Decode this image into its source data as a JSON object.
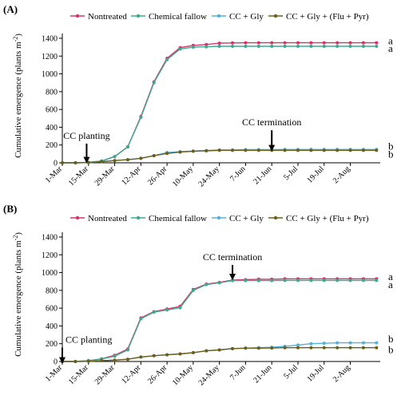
{
  "chart_data": [
    {
      "panel_label": "(A)",
      "type": "line",
      "title": "",
      "xlabel": "",
      "ylabel": "Cumulative emergence (plants m",
      "ylabel_superscript": "-2",
      "ylabel_close": ")",
      "x_ticks": [
        "1-Mar",
        "15-Mar",
        "29-Mar",
        "12-Apr",
        "26-Apr",
        "10-May",
        "24-May",
        "7-Jun",
        "21-Jun",
        "5-Jul",
        "19-Jul",
        "2-Aug"
      ],
      "y_ticks": [
        "0",
        "200",
        "400",
        "600",
        "800",
        "1000",
        "1200",
        "1400"
      ],
      "xlim": [
        0,
        170
      ],
      "ylim": [
        0,
        1400
      ],
      "grid": false,
      "legend_position": "top",
      "x": [
        0,
        7,
        14,
        21,
        28,
        35,
        42,
        49,
        56,
        63,
        70,
        77,
        84,
        91,
        98,
        105,
        112,
        119,
        126,
        133,
        140,
        147,
        154,
        161,
        168
      ],
      "series": [
        {
          "name": "Nontreated",
          "color": "#d6336c",
          "values": [
            0,
            0,
            5,
            20,
            70,
            180,
            520,
            910,
            1175,
            1295,
            1320,
            1330,
            1345,
            1348,
            1350,
            1350,
            1350,
            1350,
            1350,
            1350,
            1350,
            1350,
            1350,
            1350,
            1350
          ]
        },
        {
          "name": "Chemical fallow",
          "color": "#3fa890",
          "values": [
            0,
            0,
            5,
            20,
            70,
            180,
            510,
            900,
            1160,
            1280,
            1300,
            1305,
            1310,
            1310,
            1310,
            1310,
            1310,
            1310,
            1310,
            1310,
            1310,
            1310,
            1310,
            1310,
            1310
          ]
        },
        {
          "name": "CC + Gly",
          "color": "#52b1d8",
          "values": [
            0,
            0,
            3,
            12,
            25,
            35,
            50,
            80,
            115,
            125,
            132,
            138,
            145,
            145,
            148,
            148,
            148,
            150,
            150,
            150,
            150,
            150,
            150,
            150,
            150
          ]
        },
        {
          "name": "CC + Gly + (Flu + Pyr)",
          "color": "#6b5e1c",
          "values": [
            0,
            0,
            3,
            12,
            25,
            35,
            50,
            80,
            105,
            120,
            130,
            135,
            140,
            140,
            140,
            140,
            140,
            140,
            140,
            140,
            140,
            140,
            140,
            140,
            140
          ]
        }
      ],
      "annotations": [
        {
          "text": "CC planting",
          "x": 13,
          "y": 270,
          "arrow_to_y": 30
        },
        {
          "text": "CC termination",
          "x": 112,
          "y": 420,
          "arrow_to_y": 165
        }
      ],
      "significance_letters": [
        {
          "text": "a",
          "y": 1370
        },
        {
          "text": "a",
          "y": 1285
        },
        {
          "text": "b",
          "y": 185
        },
        {
          "text": "b",
          "y": 95
        }
      ]
    },
    {
      "panel_label": "(B)",
      "type": "line",
      "title": "",
      "xlabel": "",
      "ylabel": "Cumulative emergence (plants m",
      "ylabel_superscript": "-2",
      "ylabel_close": ")",
      "x_ticks": [
        "1-Mar",
        "15-Mar",
        "29-Mar",
        "12-Apr",
        "26-Apr",
        "10-May",
        "24-May",
        "7-Jun",
        "21-Jun",
        "5-Jul",
        "19-Jul",
        "2-Aug"
      ],
      "y_ticks": [
        "0",
        "200",
        "400",
        "600",
        "800",
        "1000",
        "1200",
        "1400"
      ],
      "xlim": [
        0,
        170
      ],
      "ylim": [
        0,
        1400
      ],
      "grid": false,
      "legend_position": "top",
      "x": [
        0,
        7,
        14,
        21,
        28,
        35,
        42,
        49,
        56,
        63,
        70,
        77,
        84,
        91,
        98,
        105,
        112,
        119,
        126,
        133,
        140,
        147,
        154,
        161,
        168
      ],
      "series": [
        {
          "name": "Nontreated",
          "color": "#d6336c",
          "values": [
            0,
            0,
            10,
            30,
            70,
            140,
            490,
            560,
            590,
            620,
            810,
            870,
            890,
            915,
            920,
            925,
            925,
            930,
            930,
            930,
            930,
            930,
            930,
            930,
            930
          ]
        },
        {
          "name": "Chemical fallow",
          "color": "#3fa890",
          "values": [
            0,
            0,
            10,
            28,
            60,
            130,
            480,
            555,
            580,
            605,
            800,
            865,
            885,
            910,
            910,
            910,
            910,
            912,
            912,
            912,
            912,
            912,
            912,
            912,
            912
          ]
        },
        {
          "name": "CC + Gly",
          "color": "#52b1d8",
          "values": [
            0,
            0,
            2,
            10,
            15,
            25,
            50,
            65,
            75,
            85,
            100,
            120,
            130,
            145,
            150,
            155,
            160,
            170,
            185,
            200,
            205,
            210,
            210,
            210,
            210
          ]
        },
        {
          "name": "CC + Gly + (Flu + Pyr)",
          "color": "#6b5e1c",
          "values": [
            0,
            0,
            2,
            10,
            15,
            25,
            50,
            65,
            75,
            85,
            100,
            120,
            130,
            145,
            150,
            150,
            152,
            155,
            155,
            155,
            155,
            155,
            155,
            155,
            155
          ]
        }
      ],
      "annotations": [
        {
          "text": "CC planting",
          "x": 0,
          "y": 210,
          "arrow_to_y": 12
        },
        {
          "text": "CC termination",
          "x": 91,
          "y": 1140,
          "arrow_to_y": 950
        }
      ],
      "significance_letters": [
        {
          "text": "a",
          "y": 950
        },
        {
          "text": "a",
          "y": 860
        },
        {
          "text": "b",
          "y": 250
        },
        {
          "text": "b",
          "y": 130
        }
      ]
    }
  ]
}
